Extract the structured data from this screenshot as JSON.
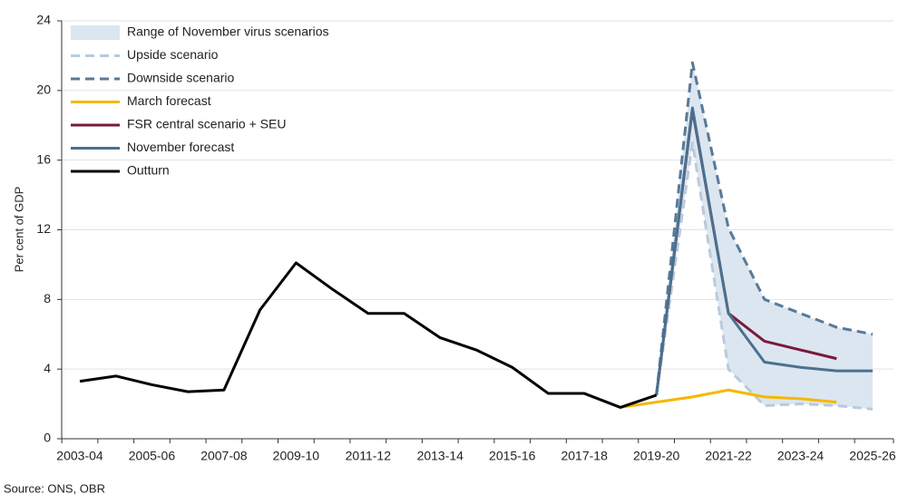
{
  "chart_data": {
    "type": "line",
    "y_label": "Per cent of GDP",
    "source": "Source: ONS, OBR",
    "categories": [
      "2003-04",
      null,
      "2005-06",
      null,
      "2007-08",
      null,
      "2009-10",
      null,
      "2011-12",
      null,
      "2013-14",
      null,
      "2015-16",
      null,
      "2017-18",
      null,
      "2019-20",
      null,
      "2021-22",
      null,
      "2023-24",
      null,
      "2025-26"
    ],
    "ylim": [
      0,
      24
    ],
    "yticks": [
      0,
      4,
      8,
      12,
      16,
      20,
      24
    ],
    "grid": true,
    "band": {
      "name": "Range of November virus scenarios",
      "color": "#dce6f0",
      "upper": "Downside scenario",
      "lower": "Upside scenario"
    },
    "series": [
      {
        "name": "Upside scenario",
        "color": "#b9cadd",
        "dashed": true,
        "values": [
          null,
          null,
          null,
          null,
          null,
          null,
          null,
          null,
          null,
          null,
          null,
          null,
          null,
          null,
          null,
          null,
          2.5,
          17.0,
          4.0,
          1.9,
          2.0,
          1.9,
          1.7
        ]
      },
      {
        "name": "Downside scenario",
        "color": "#587a98",
        "dashed": true,
        "values": [
          null,
          null,
          null,
          null,
          null,
          null,
          null,
          null,
          null,
          null,
          null,
          null,
          null,
          null,
          null,
          null,
          2.5,
          21.6,
          12.1,
          8.0,
          7.2,
          6.4,
          6.0
        ]
      },
      {
        "name": "March forecast",
        "color": "#f5b800",
        "dashed": false,
        "values": [
          null,
          null,
          null,
          null,
          null,
          null,
          null,
          null,
          null,
          null,
          null,
          null,
          null,
          null,
          null,
          1.8,
          2.1,
          2.4,
          2.8,
          2.4,
          2.3,
          2.1,
          null
        ]
      },
      {
        "name": "FSR central scenario + SEU",
        "color": "#7a1a3a",
        "dashed": false,
        "values": [
          null,
          null,
          null,
          null,
          null,
          null,
          null,
          null,
          null,
          null,
          null,
          null,
          null,
          null,
          null,
          null,
          2.5,
          18.9,
          7.2,
          5.6,
          5.1,
          4.6,
          null
        ]
      },
      {
        "name": "November forecast",
        "color": "#4a7190",
        "dashed": false,
        "values": [
          null,
          null,
          null,
          null,
          null,
          null,
          null,
          null,
          null,
          null,
          null,
          null,
          null,
          null,
          null,
          null,
          2.5,
          19.0,
          7.2,
          4.4,
          4.1,
          3.9,
          3.9
        ]
      },
      {
        "name": "Outturn",
        "color": "#000000",
        "dashed": false,
        "values": [
          3.3,
          3.6,
          3.1,
          2.7,
          2.8,
          7.4,
          10.1,
          8.6,
          7.2,
          7.2,
          5.8,
          5.1,
          4.1,
          2.6,
          2.6,
          1.8,
          2.5,
          null,
          null,
          null,
          null,
          null,
          null
        ]
      }
    ]
  }
}
